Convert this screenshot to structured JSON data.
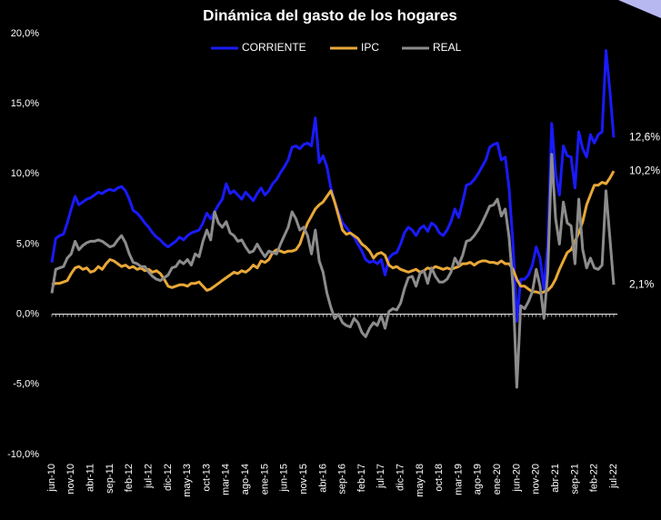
{
  "chart_data": {
    "type": "line",
    "title": "Dinámica del gasto de los hogares",
    "categories": [
      "jun-10",
      null,
      null,
      null,
      null,
      "nov-10",
      null,
      null,
      null,
      null,
      "abr-11",
      null,
      null,
      null,
      null,
      "sep-11",
      null,
      null,
      null,
      null,
      "feb-12",
      null,
      null,
      null,
      null,
      "jul-12",
      null,
      null,
      null,
      null,
      "dic-12",
      null,
      null,
      null,
      null,
      "may-13",
      null,
      null,
      null,
      null,
      "oct-13",
      null,
      null,
      null,
      null,
      "mar-14",
      null,
      null,
      null,
      null,
      "ago-14",
      null,
      null,
      null,
      null,
      "ene-15",
      null,
      null,
      null,
      null,
      "jun-15",
      null,
      null,
      null,
      null,
      "nov-15",
      null,
      null,
      null,
      null,
      "abr-16",
      null,
      null,
      null,
      null,
      "sep-16",
      null,
      null,
      null,
      null,
      "feb-17",
      null,
      null,
      null,
      null,
      "jul-17",
      null,
      null,
      null,
      null,
      "dic-17",
      null,
      null,
      null,
      null,
      "may-18",
      null,
      null,
      null,
      null,
      "oct-18",
      null,
      null,
      null,
      null,
      "mar-19",
      null,
      null,
      null,
      null,
      "ago-19",
      null,
      null,
      null,
      null,
      "ene-20",
      null,
      null,
      null,
      null,
      "jun-20",
      null,
      null,
      null,
      null,
      "nov-20",
      null,
      null,
      null,
      null,
      "abr-21",
      null,
      null,
      null,
      null,
      "sep-21",
      null,
      null,
      null,
      null,
      "feb-22",
      null,
      null,
      null,
      null,
      "jul-22"
    ],
    "series": [
      {
        "name": "CORRIENTE",
        "color": "#1a1aff",
        "last_label": "12,6%",
        "values": [
          3.7,
          5.4,
          5.6,
          5.7,
          6.5,
          7.5,
          8.4,
          7.8,
          8.0,
          8.2,
          8.3,
          8.5,
          8.7,
          8.6,
          8.8,
          8.9,
          8.8,
          9.0,
          9.1,
          8.8,
          8.2,
          7.4,
          7.2,
          6.9,
          6.5,
          6.2,
          5.8,
          5.5,
          5.3,
          5.0,
          4.8,
          5.0,
          5.2,
          5.5,
          5.3,
          5.6,
          5.8,
          5.9,
          6.0,
          6.5,
          7.2,
          6.8,
          7.3,
          7.8,
          8.2,
          9.3,
          8.6,
          8.8,
          8.5,
          8.2,
          8.7,
          8.4,
          8.1,
          8.6,
          9.0,
          8.5,
          8.8,
          9.3,
          9.6,
          10.1,
          10.5,
          11.0,
          11.9,
          12.0,
          11.8,
          12.1,
          12.2,
          12.0,
          14.0,
          10.8,
          11.3,
          10.5,
          9.0,
          8.0,
          7.2,
          6.5,
          6.2,
          5.8,
          5.5,
          5.0,
          4.5,
          3.9,
          3.7,
          3.8,
          3.6,
          3.9,
          2.8,
          4.0,
          4.3,
          4.4,
          5.0,
          5.8,
          6.2,
          6.0,
          5.6,
          6.1,
          6.3,
          5.9,
          6.5,
          6.3,
          5.8,
          5.6,
          6.0,
          6.6,
          7.5,
          6.9,
          8.0,
          9.2,
          9.3,
          9.6,
          10.0,
          10.5,
          11.0,
          11.9,
          12.1,
          12.2,
          11.0,
          11.2,
          9.0,
          5.0,
          -0.5,
          2.5,
          2.5,
          2.8,
          3.5,
          4.8,
          4.0,
          1.8,
          5.0,
          13.6,
          10.0,
          8.5,
          12.0,
          11.3,
          11.2,
          9.0,
          13.0,
          11.8,
          11.2,
          12.8,
          12.2,
          12.8,
          13.0,
          18.8,
          16.0,
          12.6
        ]
      },
      {
        "name": "IPC",
        "color": "#e8a838",
        "last_label": "10,2%",
        "values": [
          2.1,
          2.2,
          2.2,
          2.3,
          2.4,
          2.9,
          3.3,
          3.4,
          3.2,
          3.3,
          3.0,
          3.1,
          3.4,
          3.2,
          3.6,
          3.9,
          3.8,
          3.6,
          3.4,
          3.5,
          3.3,
          3.4,
          3.2,
          3.3,
          3.1,
          3.2,
          3.0,
          3.1,
          2.9,
          2.5,
          2.0,
          1.9,
          2.0,
          2.1,
          2.1,
          2.0,
          2.2,
          2.2,
          2.3,
          2.0,
          1.7,
          1.8,
          2.0,
          2.2,
          2.4,
          2.6,
          2.8,
          3.0,
          2.9,
          3.1,
          3.0,
          3.2,
          3.5,
          3.3,
          3.8,
          3.7,
          3.9,
          4.4,
          4.6,
          4.5,
          4.4,
          4.5,
          4.5,
          4.6,
          5.0,
          5.8,
          6.5,
          7.0,
          7.5,
          7.8,
          8.0,
          8.4,
          8.8,
          8.0,
          7.0,
          6.0,
          5.7,
          5.8,
          5.6,
          5.4,
          5.0,
          4.8,
          4.5,
          4.0,
          4.3,
          4.4,
          4.2,
          3.5,
          3.3,
          3.4,
          3.2,
          3.1,
          3.0,
          3.1,
          3.2,
          3.0,
          3.1,
          3.3,
          3.2,
          3.4,
          3.3,
          3.2,
          3.3,
          3.2,
          3.3,
          3.4,
          3.6,
          3.6,
          3.7,
          3.5,
          3.7,
          3.8,
          3.8,
          3.7,
          3.7,
          3.6,
          3.8,
          3.6,
          3.6,
          3.2,
          2.5,
          2.0,
          2.0,
          1.8,
          1.6,
          1.6,
          1.5,
          1.6,
          1.7,
          2.0,
          2.5,
          3.2,
          3.8,
          4.4,
          4.6,
          5.2,
          5.8,
          6.6,
          7.8,
          8.5,
          9.2,
          9.2,
          9.4,
          9.3,
          9.7,
          10.2
        ]
      },
      {
        "name": "REAL",
        "color": "#8c8c8c",
        "last_label": "2,1%",
        "values": [
          1.5,
          3.2,
          3.3,
          3.4,
          4.0,
          4.3,
          5.2,
          4.6,
          4.9,
          5.1,
          5.2,
          5.2,
          5.3,
          5.2,
          5.0,
          4.8,
          4.9,
          5.3,
          5.6,
          5.1,
          4.3,
          3.7,
          3.6,
          3.4,
          3.4,
          3.0,
          2.7,
          2.5,
          2.4,
          2.6,
          2.8,
          3.3,
          3.4,
          3.8,
          3.6,
          3.9,
          3.5,
          4.3,
          4.1,
          5.2,
          6.0,
          5.3,
          7.3,
          6.5,
          6.2,
          6.6,
          5.8,
          5.6,
          5.2,
          5.3,
          4.8,
          4.4,
          4.5,
          5.0,
          4.5,
          4.1,
          4.5,
          4.4,
          4.3,
          5.0,
          5.6,
          6.2,
          7.3,
          6.8,
          6.0,
          6.2,
          5.6,
          4.3,
          6.0,
          3.8,
          3.0,
          1.5,
          0.5,
          -0.3,
          0.0,
          -0.6,
          -0.8,
          -0.9,
          -0.3,
          -0.6,
          -1.3,
          -1.6,
          -1.0,
          -0.6,
          -0.8,
          -0.1,
          -1.0,
          0.2,
          0.4,
          0.3,
          0.8,
          1.8,
          2.6,
          2.7,
          2.0,
          2.9,
          3.1,
          2.2,
          3.3,
          2.7,
          2.3,
          2.3,
          2.5,
          3.0,
          4.0,
          3.5,
          4.2,
          5.2,
          5.3,
          5.6,
          6.0,
          6.5,
          7.1,
          7.7,
          7.8,
          8.2,
          7.0,
          7.5,
          5.5,
          2.0,
          -5.2,
          0.6,
          0.4,
          0.9,
          1.6,
          3.2,
          2.0,
          -0.3,
          3.0,
          11.4,
          6.8,
          5.0,
          8.0,
          6.5,
          6.3,
          3.6,
          8.2,
          4.6,
          3.3,
          4.0,
          3.3,
          3.2,
          3.5,
          8.8,
          5.5,
          2.1
        ]
      }
    ],
    "ylim": [
      -10,
      20
    ],
    "yticks": [
      {
        "value": -10,
        "label": "-10,0%"
      },
      {
        "value": -5,
        "label": "-5,0%"
      },
      {
        "value": 0,
        "label": "0,0%"
      },
      {
        "value": 5,
        "label": "5,0%"
      },
      {
        "value": 10,
        "label": "10,0%"
      },
      {
        "value": 15,
        "label": "15,0%"
      },
      {
        "value": 20,
        "label": "20,0%"
      }
    ],
    "legend": "top"
  }
}
